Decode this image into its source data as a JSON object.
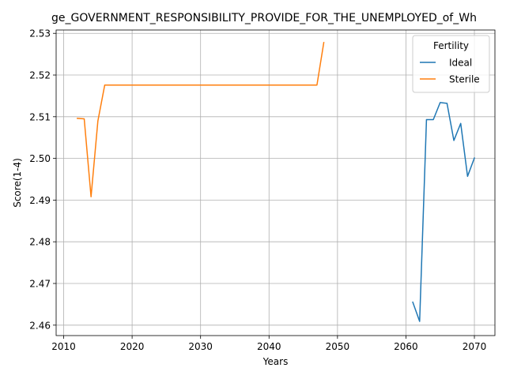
{
  "chart_data": {
    "type": "line",
    "title": "ge_GOVERNMENT_RESPONSIBILITY_PROVIDE_FOR_THE_UNEMPLOYED_of_Wh",
    "xlabel": "Years",
    "ylabel": "Score(1-4)",
    "xlim": [
      2008.9,
      2073.0
    ],
    "ylim": [
      2.4575,
      2.5308
    ],
    "xticks": [
      2010,
      2020,
      2030,
      2040,
      2050,
      2060,
      2070
    ],
    "xtick_labels": [
      "2010",
      "2020",
      "2030",
      "2040",
      "2050",
      "2060",
      "2070"
    ],
    "yticks": [
      2.46,
      2.47,
      2.48,
      2.49,
      2.5,
      2.51,
      2.52,
      2.53
    ],
    "ytick_labels": [
      "2.46",
      "2.47",
      "2.48",
      "2.49",
      "2.50",
      "2.51",
      "2.52",
      "2.53"
    ],
    "grid": true,
    "legend": {
      "title": "Fertility",
      "placement": "top-right"
    },
    "series": [
      {
        "name": "Ideal",
        "color": "#1f77b4",
        "x": [
          2061,
          2062,
          2063,
          2064,
          2065,
          2066,
          2067,
          2068,
          2069,
          2070
        ],
        "y": [
          2.4655,
          2.4609,
          2.5093,
          2.5093,
          2.5134,
          2.5132,
          2.5043,
          2.5084,
          2.4957,
          2.5001
        ]
      },
      {
        "name": "Sterile",
        "color": "#ff7f0e",
        "x": [
          2012,
          2013,
          2014,
          2015,
          2016,
          2017,
          2018,
          2019,
          2020,
          2021,
          2022,
          2023,
          2024,
          2025,
          2026,
          2027,
          2028,
          2029,
          2030,
          2031,
          2032,
          2033,
          2034,
          2035,
          2036,
          2037,
          2038,
          2039,
          2040,
          2041,
          2042,
          2043,
          2044,
          2045,
          2046,
          2047,
          2048
        ],
        "y": [
          2.5096,
          2.5095,
          2.4908,
          2.509,
          2.5176,
          2.5176,
          2.5176,
          2.5176,
          2.5176,
          2.5176,
          2.5176,
          2.5176,
          2.5176,
          2.5176,
          2.5176,
          2.5176,
          2.5176,
          2.5176,
          2.5176,
          2.5176,
          2.5176,
          2.5176,
          2.5176,
          2.5176,
          2.5176,
          2.5176,
          2.5176,
          2.5176,
          2.5176,
          2.5176,
          2.5176,
          2.5176,
          2.5176,
          2.5176,
          2.5176,
          2.5176,
          2.5278
        ]
      }
    ]
  }
}
